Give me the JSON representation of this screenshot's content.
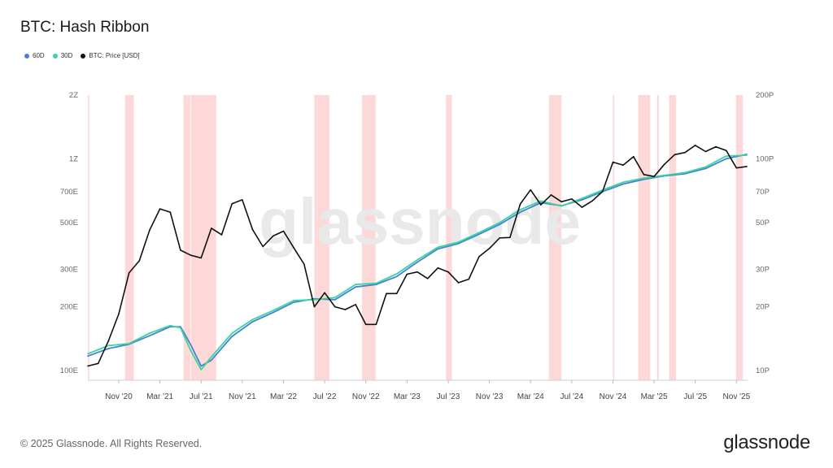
{
  "header": {
    "title": "BTC: Hash Ribbon"
  },
  "legend": [
    {
      "label": "60D",
      "color": "#4a7fd6"
    },
    {
      "label": "30D",
      "color": "#35d79a"
    },
    {
      "label": "BTC: Price [USD]",
      "color": "#111111"
    }
  ],
  "footer": {
    "copyright": "© 2025 Glassnode. All Rights Reserved.",
    "logo_text": "glassnode"
  },
  "watermark": "glassnode",
  "chart_data": {
    "type": "line",
    "title": "BTC: Hash Ribbon",
    "log_scale": true,
    "x_ticks": [
      "Nov '20",
      "Mar '21",
      "Jul '21",
      "Nov '21",
      "Mar '22",
      "Jul '22",
      "Nov '22",
      "Mar '23",
      "Jul '23",
      "Nov '23",
      "Mar '24",
      "Jul '24",
      "Nov '24",
      "Mar '25",
      "Jul '25",
      "Nov '25"
    ],
    "y_left_ticks": [
      "2Z",
      "1Z",
      "700E",
      "500E",
      "300E",
      "200E",
      "100E"
    ],
    "y_right_ticks": [
      "200P",
      "100P",
      "70P",
      "50P",
      "30P",
      "20P",
      "10P"
    ],
    "xlim": [
      "2020-08",
      "2025-12"
    ],
    "ylim_left_EH": [
      90,
      2000
    ],
    "ylim_right_usd": [
      9000,
      200000
    ],
    "capitulation_bands": [
      [
        "2020-08-01",
        "2020-08-05"
      ],
      [
        "2020-11-20",
        "2020-12-15"
      ],
      [
        "2021-05-10",
        "2021-05-20"
      ],
      [
        "2021-05-20",
        "2021-05-30"
      ],
      [
        "2021-06-01",
        "2021-08-15"
      ],
      [
        "2022-06-01",
        "2022-07-15"
      ],
      [
        "2022-10-20",
        "2022-11-30"
      ],
      [
        "2023-06-25",
        "2023-07-12"
      ],
      [
        "2024-04-25",
        "2024-06-01"
      ],
      [
        "2024-11-01",
        "2024-11-05"
      ],
      [
        "2025-01-15",
        "2025-02-20"
      ],
      [
        "2025-03-10",
        "2025-03-15"
      ],
      [
        "2025-04-15",
        "2025-05-05"
      ],
      [
        "2025-10-30",
        "2025-11-20"
      ]
    ],
    "series": [
      {
        "name": "60D",
        "color": "#4a7fd6",
        "axis": "left",
        "points": [
          [
            "2020-08",
            117
          ],
          [
            "2020-10",
            127
          ],
          [
            "2020-12",
            133
          ],
          [
            "2021-02",
            146
          ],
          [
            "2021-04",
            161
          ],
          [
            "2021-05",
            161
          ],
          [
            "2021-06",
            132
          ],
          [
            "2021-07",
            105
          ],
          [
            "2021-08",
            112
          ],
          [
            "2021-10",
            145
          ],
          [
            "2021-12",
            170
          ],
          [
            "2022-02",
            188
          ],
          [
            "2022-04",
            210
          ],
          [
            "2022-06",
            218
          ],
          [
            "2022-08",
            216
          ],
          [
            "2022-10",
            248
          ],
          [
            "2022-12",
            255
          ],
          [
            "2023-02",
            278
          ],
          [
            "2023-04",
            325
          ],
          [
            "2023-06",
            375
          ],
          [
            "2023-08",
            398
          ],
          [
            "2023-10",
            440
          ],
          [
            "2023-12",
            490
          ],
          [
            "2024-02",
            560
          ],
          [
            "2024-04",
            620
          ],
          [
            "2024-06",
            600
          ],
          [
            "2024-08",
            640
          ],
          [
            "2024-10",
            700
          ],
          [
            "2024-12",
            760
          ],
          [
            "2025-02",
            800
          ],
          [
            "2025-04",
            830
          ],
          [
            "2025-06",
            850
          ],
          [
            "2025-08",
            900
          ],
          [
            "2025-10",
            1000
          ],
          [
            "2025-12",
            1050
          ]
        ]
      },
      {
        "name": "30D",
        "color": "#35d79a",
        "axis": "left",
        "points": [
          [
            "2020-08",
            120
          ],
          [
            "2020-10",
            131
          ],
          [
            "2020-12",
            134
          ],
          [
            "2021-02",
            150
          ],
          [
            "2021-04",
            163
          ],
          [
            "2021-05",
            159
          ],
          [
            "2021-06",
            124
          ],
          [
            "2021-07",
            101
          ],
          [
            "2021-08",
            116
          ],
          [
            "2021-10",
            150
          ],
          [
            "2021-12",
            174
          ],
          [
            "2022-02",
            192
          ],
          [
            "2022-04",
            214
          ],
          [
            "2022-06",
            216
          ],
          [
            "2022-08",
            221
          ],
          [
            "2022-10",
            255
          ],
          [
            "2022-12",
            258
          ],
          [
            "2023-02",
            286
          ],
          [
            "2023-04",
            333
          ],
          [
            "2023-06",
            382
          ],
          [
            "2023-08",
            404
          ],
          [
            "2023-10",
            448
          ],
          [
            "2023-12",
            500
          ],
          [
            "2024-02",
            575
          ],
          [
            "2024-04",
            632
          ],
          [
            "2024-06",
            598
          ],
          [
            "2024-08",
            650
          ],
          [
            "2024-10",
            712
          ],
          [
            "2024-12",
            775
          ],
          [
            "2025-02",
            810
          ],
          [
            "2025-04",
            835
          ],
          [
            "2025-06",
            860
          ],
          [
            "2025-08",
            915
          ],
          [
            "2025-10",
            1030
          ],
          [
            "2025-12",
            1040
          ]
        ]
      },
      {
        "name": "BTC: Price [USD]",
        "color": "#111111",
        "axis": "right",
        "points": [
          [
            "2020-08",
            10500
          ],
          [
            "2020-09",
            10800
          ],
          [
            "2020-10",
            13800
          ],
          [
            "2020-11",
            18500
          ],
          [
            "2020-12",
            28900
          ],
          [
            "2021-01",
            33000
          ],
          [
            "2021-02",
            46000
          ],
          [
            "2021-03",
            58000
          ],
          [
            "2021-04",
            56000
          ],
          [
            "2021-05",
            37000
          ],
          [
            "2021-06",
            35000
          ],
          [
            "2021-07",
            34000
          ],
          [
            "2021-08",
            47000
          ],
          [
            "2021-09",
            43800
          ],
          [
            "2021-10",
            61300
          ],
          [
            "2021-11",
            64000
          ],
          [
            "2021-12",
            46300
          ],
          [
            "2022-01",
            38500
          ],
          [
            "2022-02",
            43200
          ],
          [
            "2022-03",
            45500
          ],
          [
            "2022-04",
            38000
          ],
          [
            "2022-05",
            31800
          ],
          [
            "2022-06",
            20000
          ],
          [
            "2022-07",
            23300
          ],
          [
            "2022-08",
            20000
          ],
          [
            "2022-09",
            19400
          ],
          [
            "2022-10",
            20500
          ],
          [
            "2022-11",
            16500
          ],
          [
            "2022-12",
            16500
          ],
          [
            "2023-01",
            23100
          ],
          [
            "2023-02",
            23100
          ],
          [
            "2023-03",
            28500
          ],
          [
            "2023-04",
            29200
          ],
          [
            "2023-05",
            27200
          ],
          [
            "2023-06",
            30500
          ],
          [
            "2023-07",
            29200
          ],
          [
            "2023-08",
            26000
          ],
          [
            "2023-09",
            27000
          ],
          [
            "2023-10",
            34500
          ],
          [
            "2023-11",
            37700
          ],
          [
            "2023-12",
            42300
          ],
          [
            "2024-01",
            42500
          ],
          [
            "2024-02",
            61200
          ],
          [
            "2024-03",
            71300
          ],
          [
            "2024-04",
            60600
          ],
          [
            "2024-05",
            67500
          ],
          [
            "2024-06",
            62700
          ],
          [
            "2024-07",
            64600
          ],
          [
            "2024-08",
            59000
          ],
          [
            "2024-09",
            63300
          ],
          [
            "2024-10",
            70200
          ],
          [
            "2024-11",
            96400
          ],
          [
            "2024-12",
            93400
          ],
          [
            "2025-01",
            102400
          ],
          [
            "2025-02",
            84300
          ],
          [
            "2025-03",
            82500
          ],
          [
            "2025-04",
            94200
          ],
          [
            "2025-05",
            104600
          ],
          [
            "2025-06",
            107100
          ],
          [
            "2025-07",
            115700
          ],
          [
            "2025-08",
            108200
          ],
          [
            "2025-09",
            114000
          ],
          [
            "2025-10",
            109500
          ],
          [
            "2025-11",
            90500
          ],
          [
            "2025-12",
            92000
          ]
        ]
      }
    ]
  }
}
